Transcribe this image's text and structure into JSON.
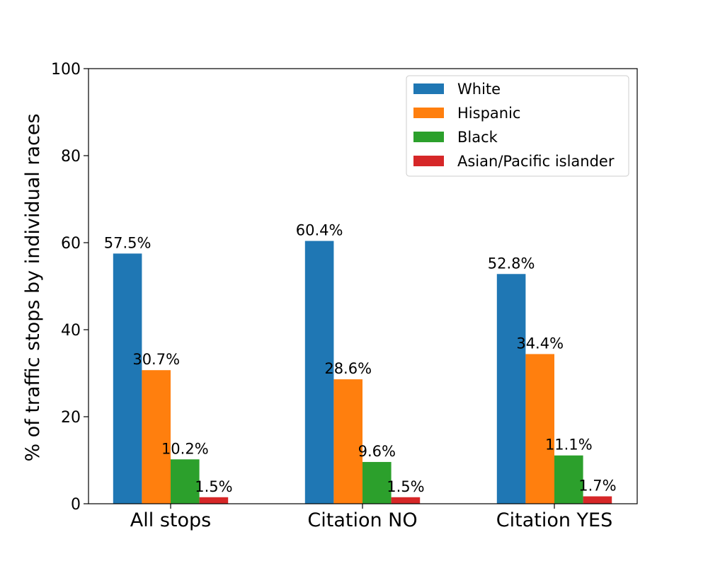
{
  "chart_data": {
    "type": "bar",
    "categories": [
      "All stops",
      "Citation NO",
      "Citation YES"
    ],
    "series": [
      {
        "name": "White",
        "color": "#1f77b4",
        "values": [
          57.5,
          60.4,
          52.8
        ],
        "labels": [
          "57.5%",
          "60.4%",
          "52.8%"
        ]
      },
      {
        "name": "Hispanic",
        "color": "#ff7f0e",
        "values": [
          30.7,
          28.6,
          34.4
        ],
        "labels": [
          "30.7%",
          "28.6%",
          "34.4%"
        ]
      },
      {
        "name": "Black",
        "color": "#2ca02c",
        "values": [
          10.2,
          9.6,
          11.1
        ],
        "labels": [
          "10.2%",
          "9.6%",
          "11.1%"
        ]
      },
      {
        "name": "Asian/Pacific islander",
        "color": "#d62728",
        "values": [
          1.5,
          1.5,
          1.7
        ],
        "labels": [
          "1.5%",
          "1.5%",
          "1.7%"
        ]
      }
    ],
    "ylabel": "% of traffic stops by individual races",
    "ylim": [
      0,
      100
    ],
    "yticks": [
      "0",
      "20",
      "40",
      "60",
      "80",
      "100"
    ],
    "legend_position": "top-right",
    "grid": false
  }
}
